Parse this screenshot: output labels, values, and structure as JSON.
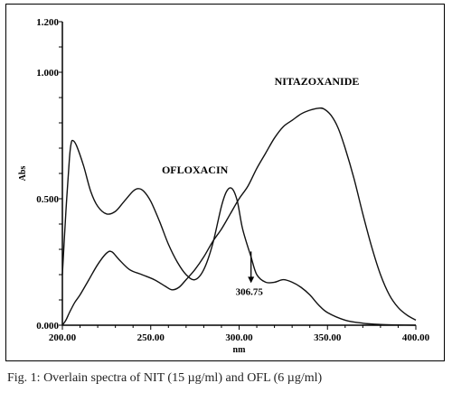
{
  "chart_data": {
    "type": "line",
    "xlabel": "nm",
    "ylabel": "Abs",
    "xlim": [
      200,
      400
    ],
    "ylim": [
      0,
      1.2
    ],
    "x_ticks": [
      "200.00",
      "250.00",
      "300.00",
      "350.00",
      "400.00"
    ],
    "y_ticks": [
      "0.000",
      "0.500",
      "1.000",
      "1.200"
    ],
    "grid": false,
    "series": [
      {
        "name": "NITAZOXANIDE",
        "x": [
          200,
          202,
          204,
          207,
          210,
          215,
          220,
          225,
          228,
          232,
          238,
          245,
          252,
          258,
          262,
          266,
          270,
          275,
          280,
          285,
          290,
          295,
          300,
          305,
          310,
          315,
          320,
          325,
          330,
          335,
          340,
          345,
          348,
          352,
          356,
          360,
          365,
          370,
          375,
          380,
          385,
          390,
          395,
          400
        ],
        "y": [
          0.0,
          0.02,
          0.05,
          0.09,
          0.12,
          0.18,
          0.24,
          0.285,
          0.29,
          0.26,
          0.22,
          0.2,
          0.18,
          0.155,
          0.14,
          0.15,
          0.18,
          0.22,
          0.27,
          0.33,
          0.38,
          0.44,
          0.5,
          0.55,
          0.62,
          0.68,
          0.74,
          0.785,
          0.81,
          0.835,
          0.85,
          0.858,
          0.855,
          0.83,
          0.78,
          0.7,
          0.58,
          0.44,
          0.31,
          0.2,
          0.12,
          0.07,
          0.04,
          0.02
        ]
      },
      {
        "name": "OFLOXACIN",
        "x": [
          200,
          202,
          204,
          205,
          206,
          208,
          212,
          216,
          220,
          225,
          230,
          235,
          240,
          243,
          246,
          250,
          255,
          260,
          265,
          270,
          275,
          280,
          285,
          290,
          293,
          296,
          299,
          302,
          306.75,
          310,
          315,
          320,
          325,
          330,
          335,
          340,
          345,
          350,
          360,
          370,
          380,
          390,
          400
        ],
        "y": [
          0.2,
          0.45,
          0.66,
          0.72,
          0.73,
          0.71,
          0.63,
          0.53,
          0.47,
          0.44,
          0.45,
          0.49,
          0.53,
          0.54,
          0.53,
          0.49,
          0.41,
          0.32,
          0.25,
          0.2,
          0.18,
          0.22,
          0.32,
          0.47,
          0.53,
          0.54,
          0.49,
          0.38,
          0.27,
          0.2,
          0.17,
          0.17,
          0.18,
          0.17,
          0.15,
          0.12,
          0.08,
          0.05,
          0.02,
          0.008,
          0.003,
          0.001,
          0.0
        ]
      }
    ],
    "annotations": [
      {
        "text": "306.75",
        "x": 306.75,
        "y": 0.27
      }
    ]
  },
  "caption": "Fig. 1: Overlain spectra of NIT (15 µg/ml) and OFL (6 µg/ml)"
}
